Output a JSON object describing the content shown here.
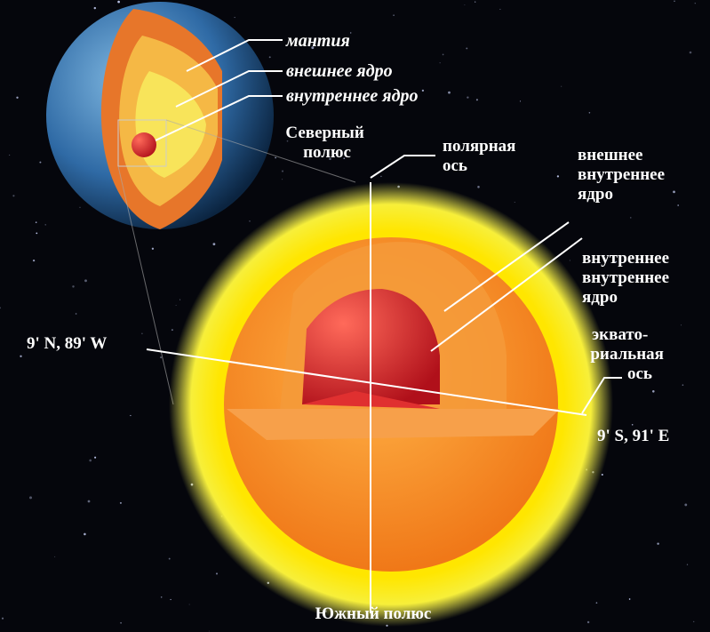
{
  "labels": {
    "mantle": "мантия",
    "outer_core": "внешнее ядро",
    "inner_core": "внутреннее ядро",
    "north_pole": [
      "Северный",
      "полюс"
    ],
    "polar_axis": [
      "полярная",
      "ось"
    ],
    "outer_inner_core": [
      "внешнее",
      "внутреннее",
      "ядро"
    ],
    "inner_inner_core": [
      "внутреннее",
      "внутреннее",
      "ядро"
    ],
    "point_north": "9' N, 89' W",
    "equatorial_axis": [
      "эквато-",
      "риальная",
      "ось"
    ],
    "point_south": "9' S, 91' E",
    "south_pole": "Южный полюс"
  }
}
